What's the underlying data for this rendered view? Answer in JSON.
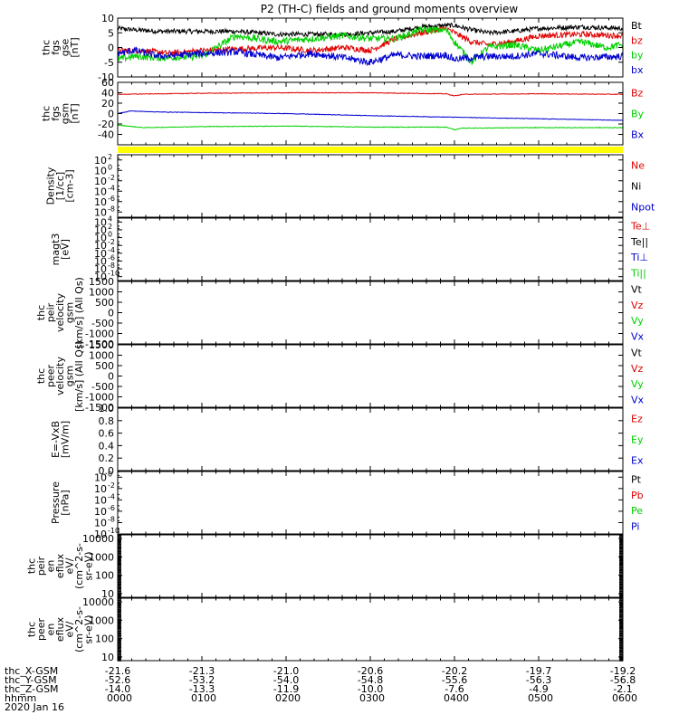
{
  "title": "P2 (TH-C) fields and ground moments overview",
  "colors": {
    "black": "#000000",
    "red": "#e00000",
    "green": "#00d000",
    "blue": "#0000d0",
    "yellow": "#ffff00"
  },
  "chart_data": {
    "type": "line",
    "x_range": [
      0,
      6
    ],
    "x_unit": "hours",
    "panels": [
      {
        "id": "fgs-gse",
        "ylabel": [
          "thc",
          "fgs",
          "gse",
          "[nT]"
        ],
        "ylim": [
          -10,
          10
        ],
        "scale": "linear",
        "yticks": [
          "10",
          "5",
          "0",
          "-5",
          "-10"
        ],
        "ytick_values": [
          10,
          5,
          0,
          -5,
          -10
        ],
        "legend": [
          {
            "label": "Bt",
            "color": "#000000"
          },
          {
            "label": "bz",
            "color": "#e00000"
          },
          {
            "label": "by",
            "color": "#00d000"
          },
          {
            "label": "bx",
            "color": "#0000d0"
          }
        ],
        "series": [
          {
            "name": "Bt",
            "color": "#000000",
            "noise": 0.8,
            "x": [
              0,
              0.2,
              0.5,
              1.0,
              1.4,
              1.9,
              2.3,
              2.7,
              3.0,
              3.3,
              3.6,
              3.9,
              4.0,
              4.2,
              4.4,
              4.7,
              5.0,
              5.5,
              6.0
            ],
            "y": [
              6.5,
              6,
              5.5,
              5.5,
              5.5,
              4.5,
              4.5,
              4.5,
              5,
              5.5,
              7,
              7.5,
              7.5,
              6,
              5,
              5.5,
              6.5,
              7,
              6.5
            ]
          },
          {
            "name": "bz",
            "color": "#e00000",
            "noise": 1.0,
            "x": [
              0,
              0.3,
              0.6,
              1.0,
              1.4,
              1.9,
              2.3,
              2.7,
              3.0,
              3.3,
              3.6,
              3.9,
              4.0,
              4.2,
              4.4,
              4.7,
              5.0,
              5.5,
              6.0
            ],
            "y": [
              -1,
              -1,
              -2,
              -1,
              -0.5,
              0,
              -1,
              0,
              -1,
              3,
              5,
              6.5,
              5,
              2,
              1,
              2,
              4,
              4.5,
              4
            ]
          },
          {
            "name": "by",
            "color": "#00d000",
            "noise": 1.2,
            "x": [
              0,
              0.2,
              0.5,
              1.0,
              1.4,
              1.9,
              2.3,
              2.7,
              3.0,
              3.3,
              3.6,
              3.9,
              4.0,
              4.2,
              4.4,
              4.7,
              5.0,
              5.5,
              5.8,
              6.0
            ],
            "y": [
              -4,
              -3,
              -3.5,
              -3,
              4,
              2,
              3,
              4,
              3,
              3,
              6,
              6,
              2,
              -5,
              0,
              1,
              -1,
              2,
              0,
              1
            ]
          },
          {
            "name": "bx",
            "color": "#0000d0",
            "noise": 1.2,
            "x": [
              0,
              0.2,
              0.5,
              1.0,
              1.4,
              1.9,
              2.3,
              2.7,
              3.0,
              3.3,
              3.6,
              3.9,
              4.0,
              4.2,
              4.4,
              4.7,
              5.0,
              5.5,
              6.0
            ],
            "y": [
              -2,
              -1,
              -3,
              -2,
              -1.5,
              -3.5,
              -2,
              -3.5,
              -5,
              -2.5,
              -3,
              -2.5,
              -4,
              -3.5,
              -3,
              -3,
              -2,
              -3.5,
              -3
            ]
          }
        ]
      },
      {
        "id": "fgs-gsm",
        "ylabel": [
          "thc",
          "fgs",
          "gsm",
          "[nT]"
        ],
        "ylim": [
          -60,
          60
        ],
        "scale": "linear",
        "yticks": [
          "60",
          "40",
          "20",
          "0",
          "-20",
          "-40"
        ],
        "ytick_values": [
          60,
          40,
          20,
          0,
          -20,
          -40
        ],
        "legend": [
          {
            "label": "Bz",
            "color": "#e00000"
          },
          {
            "label": "By",
            "color": "#00d000"
          },
          {
            "label": "Bx",
            "color": "#0000d0"
          }
        ],
        "series": [
          {
            "name": "Bz",
            "color": "#e00000",
            "noise": 0.6,
            "x": [
              0,
              1,
              2,
              3,
              3.9,
              4.0,
              4.1,
              5,
              6
            ],
            "y": [
              37,
              39,
              40,
              40,
              38,
              34,
              37,
              38,
              37
            ]
          },
          {
            "name": "By",
            "color": "#00d000",
            "noise": 0.6,
            "x": [
              0,
              0.3,
              1,
              2,
              3,
              3.9,
              4.0,
              4.1,
              5,
              6
            ],
            "y": [
              -22,
              -27,
              -25,
              -24,
              -26,
              -26,
              -31,
              -28,
              -27,
              -27
            ]
          },
          {
            "name": "Bx",
            "color": "#0000d0",
            "noise": 0.5,
            "x": [
              0,
              0.15,
              0.5,
              1,
              2,
              3,
              4,
              5,
              6
            ],
            "y": [
              0,
              5,
              3,
              2,
              0,
              -4,
              -7,
              -10,
              -13
            ]
          }
        ]
      },
      {
        "id": "density",
        "ylabel": [
          "Density",
          "[1/cc]",
          "[cm-3]"
        ],
        "ylim_exp": [
          -9,
          3
        ],
        "scale": "log",
        "ytick_exps": [
          2,
          0,
          -2,
          -4,
          -6,
          -8
        ],
        "legend": [
          {
            "label": "Ne",
            "color": "#e00000"
          },
          {
            "label": "Ni",
            "color": "#000000"
          },
          {
            "label": "Npot",
            "color": "#0000d0"
          }
        ]
      },
      {
        "id": "temperature",
        "ylabel": [
          "magt3",
          "[eV]"
        ],
        "ylim_exp": [
          -11,
          5
        ],
        "scale": "log",
        "ytick_exps": [
          4,
          2,
          0,
          -2,
          -4,
          -6,
          -8,
          -10
        ],
        "legend": [
          {
            "label": "Te⊥",
            "color": "#e00000"
          },
          {
            "label": "Te||",
            "color": "#000000"
          },
          {
            "label": "Ti⊥",
            "color": "#0000d0"
          },
          {
            "label": "Ti||",
            "color": "#00d000"
          }
        ]
      },
      {
        "id": "peir-velocity",
        "ylabel": [
          "thc",
          "peir",
          "velocity",
          "gsm",
          "[km/s] (All Qs)"
        ],
        "ylim": [
          -1500,
          1500
        ],
        "scale": "linear",
        "yticks": [
          "1500",
          "1000",
          "500",
          "0",
          "-500",
          "-1000",
          "-1500"
        ],
        "ytick_values": [
          1500,
          1000,
          500,
          0,
          -500,
          -1000,
          -1500
        ],
        "legend": [
          {
            "label": "Vt",
            "color": "#000000"
          },
          {
            "label": "Vz",
            "color": "#e00000"
          },
          {
            "label": "Vy",
            "color": "#00d000"
          },
          {
            "label": "Vx",
            "color": "#0000d0"
          }
        ]
      },
      {
        "id": "peer-velocity",
        "ylabel": [
          "thc",
          "peer",
          "velocity",
          "gsm",
          "[km/s] (All Qs)"
        ],
        "ylim": [
          -1500,
          1500
        ],
        "scale": "linear",
        "yticks": [
          "1500",
          "1000",
          "500",
          "0",
          "-500",
          "-1000",
          "-1500"
        ],
        "ytick_values": [
          1500,
          1000,
          500,
          0,
          -500,
          -1000,
          -1500
        ],
        "legend": [
          {
            "label": "Vt",
            "color": "#000000"
          },
          {
            "label": "Vz",
            "color": "#e00000"
          },
          {
            "label": "Vy",
            "color": "#00d000"
          },
          {
            "label": "Vx",
            "color": "#0000d0"
          }
        ]
      },
      {
        "id": "efield",
        "ylabel": [
          "E=-VxB",
          "[mV/m]"
        ],
        "ylim": [
          0,
          1
        ],
        "scale": "linear",
        "yticks": [
          "1.0",
          "0.8",
          "0.6",
          "0.4",
          "0.2",
          "0.0"
        ],
        "ytick_values": [
          1.0,
          0.8,
          0.6,
          0.4,
          0.2,
          0.0
        ],
        "legend": [
          {
            "label": "Ez",
            "color": "#e00000"
          },
          {
            "label": "Ey",
            "color": "#00d000"
          },
          {
            "label": "Ex",
            "color": "#0000d0"
          }
        ]
      },
      {
        "id": "pressure",
        "ylabel": [
          "Pressure",
          "[nPa]"
        ],
        "ylim_exp": [
          -10,
          1
        ],
        "scale": "log",
        "ytick_exps": [
          0,
          -2,
          -4,
          -6,
          -8,
          -10
        ],
        "legend": [
          {
            "label": "Pt",
            "color": "#000000"
          },
          {
            "label": "Pb",
            "color": "#e00000"
          },
          {
            "label": "Pe",
            "color": "#00d000"
          },
          {
            "label": "Pi",
            "color": "#0000d0"
          }
        ]
      },
      {
        "id": "peir-eflux",
        "ylabel": [
          "thc",
          "peir",
          "en",
          "eflux",
          "eV/",
          "(cm^2-s-",
          "sr-eV)"
        ],
        "ylim_exp": [
          0.8,
          4.2
        ],
        "scale": "log",
        "yticks": [
          "10000",
          "1000",
          "100",
          "10"
        ],
        "ytick_exps": [
          4,
          3,
          2,
          1
        ],
        "legend": []
      },
      {
        "id": "peer-eflux",
        "ylabel": [
          "thc",
          "peer",
          "en",
          "eflux",
          "eV/",
          "(cm^2-s-",
          "sr-eV)"
        ],
        "ylim_exp": [
          0.8,
          4.2
        ],
        "scale": "log",
        "yticks": [
          "10000",
          "1000",
          "100",
          "10"
        ],
        "ytick_exps": [
          4,
          3,
          2,
          1
        ],
        "legend": []
      }
    ],
    "xaxis_rows": [
      {
        "label": "thc_X-GSM",
        "values": [
          "-21.6",
          "-21.3",
          "-21.0",
          "-20.6",
          "-20.2",
          "-19.7",
          "-19.2"
        ]
      },
      {
        "label": "thc_Y-GSM",
        "values": [
          "-52.6",
          "-53.2",
          "-54.0",
          "-54.8",
          "-55.6",
          "-56.3",
          "-56.8"
        ]
      },
      {
        "label": "thc_Z-GSM",
        "values": [
          "-14.0",
          "-13.3",
          "-11.9",
          "-10.0",
          "-7.6",
          "-4.9",
          "-2.1"
        ]
      },
      {
        "label": "hhmm",
        "values": [
          "0000",
          "0100",
          "0200",
          "0300",
          "0400",
          "0500",
          "0600"
        ]
      }
    ],
    "date": "2020 Jan 16"
  }
}
